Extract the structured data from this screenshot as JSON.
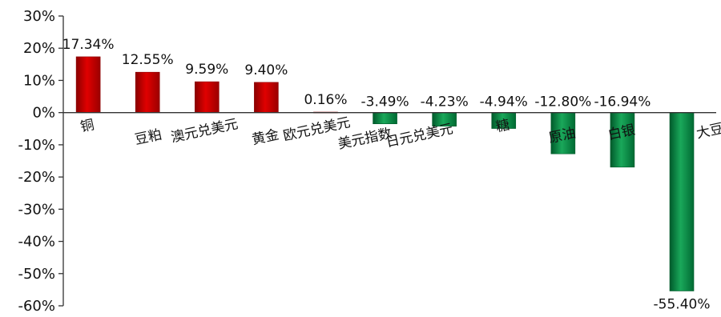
{
  "chart_data": {
    "type": "bar",
    "categories": [
      "铜",
      "豆粕",
      "澳元兑美元",
      "黄金",
      "欧元兑美元",
      "美元指数",
      "日元兑美元",
      "糖",
      "原油",
      "白银",
      "大豆"
    ],
    "values": [
      17.34,
      12.55,
      9.59,
      9.4,
      0.16,
      -3.49,
      -4.23,
      -4.94,
      -12.8,
      -16.94,
      -55.4
    ],
    "data_labels": [
      "17.34%",
      "12.55%",
      "9.59%",
      "9.40%",
      "0.16%",
      "-3.49%",
      "-4.23%",
      "-4.94%",
      "-12.80%",
      "-16.94%",
      "-55.40%"
    ],
    "y_ticks": [
      30,
      20,
      10,
      0,
      -10,
      -20,
      -30,
      -40,
      -50,
      -60
    ],
    "y_tick_labels": [
      "30%",
      "20%",
      "10%",
      "0%",
      "-10%",
      "-20%",
      "-30%",
      "-40%",
      "-50%",
      "-60%"
    ],
    "ylim": [
      -60,
      30
    ],
    "title": "",
    "xlabel": "",
    "ylabel": "",
    "grid": false,
    "legend": "none",
    "colors": {
      "positive": "#c00000",
      "positive_dark": "#8b0000",
      "negative": "#00924a",
      "negative_dark": "#005a2b",
      "axis": "#333333"
    }
  }
}
